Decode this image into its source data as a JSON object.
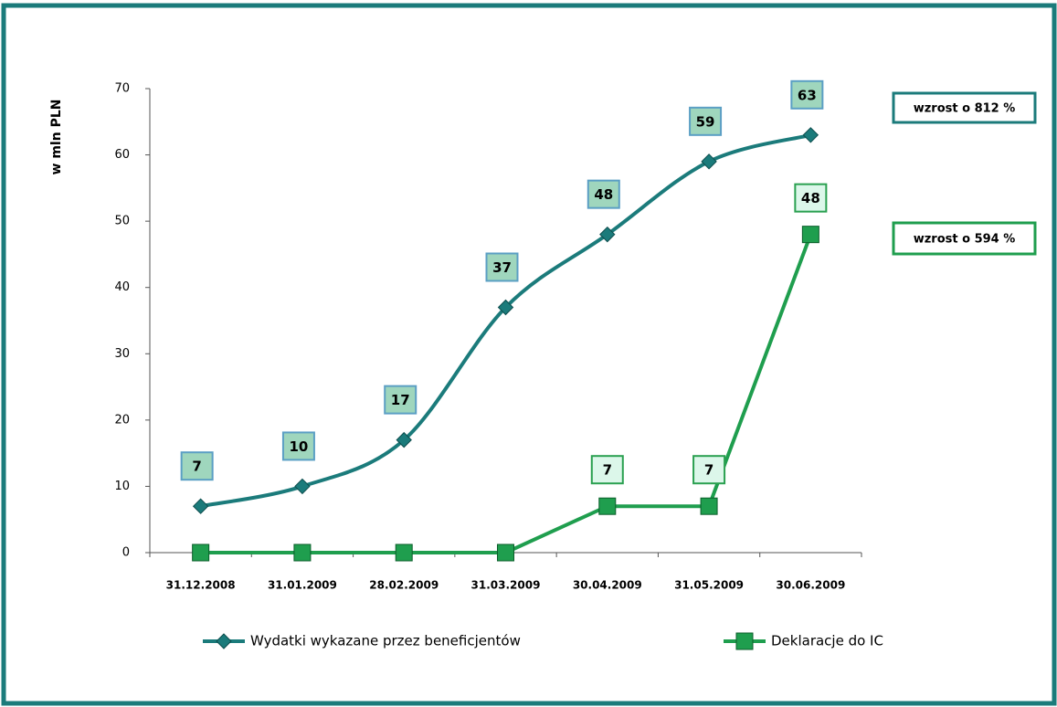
{
  "chart_data": {
    "type": "line",
    "y_label": "w mln PLN",
    "categories": [
      "31.12.2008",
      "31.01.2009",
      "28.02.2009",
      "31.03.2009",
      "30.04.2009",
      "31.05.2009",
      "30.06.2009"
    ],
    "series": [
      {
        "name": "Wydatki wykazane przez beneficjentów",
        "color": "#1b7b7b",
        "marker": "diamond",
        "smooth": true,
        "values": [
          7,
          10,
          17,
          37,
          48,
          59,
          63
        ]
      },
      {
        "name": "Deklaracje do IC",
        "color": "#1f9e4e",
        "marker": "square",
        "smooth": false,
        "values": [
          0,
          0,
          0,
          0,
          7,
          7,
          48
        ],
        "value_labels": [
          null,
          null,
          null,
          null,
          "7",
          "7",
          "48"
        ]
      }
    ],
    "annotations": [
      {
        "text": "wzrost o 812 %",
        "color": "#1b7b7b"
      },
      {
        "text": "wzrost o 594 %",
        "color": "#1f9e4e"
      }
    ],
    "ylim": [
      0,
      70
    ],
    "yticks": [
      0,
      10,
      20,
      30,
      40,
      50,
      60,
      70
    ],
    "grid": false,
    "legend": "bottom"
  }
}
